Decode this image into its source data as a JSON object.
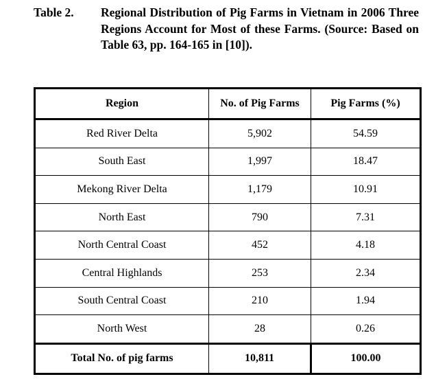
{
  "caption": {
    "label": "Table 2.",
    "text": "Regional Distribution of Pig Farms in Vietnam in 2006 Three Regions Account for Most of these Farms. (Source: Based on Table 63, pp. 164-165 in [10])."
  },
  "table": {
    "headers": [
      "Region",
      "No. of Pig Farms",
      "Pig Farms (%)"
    ],
    "rows": [
      [
        "Red River Delta",
        "5,902",
        "54.59"
      ],
      [
        "South East",
        "1,997",
        "18.47"
      ],
      [
        "Mekong River Delta",
        "1,179",
        "10.91"
      ],
      [
        "North East",
        "790",
        "7.31"
      ],
      [
        "North Central Coast",
        "452",
        "4.18"
      ],
      [
        "Central Highlands",
        "253",
        "2.34"
      ],
      [
        "South Central Coast",
        "210",
        "1.94"
      ],
      [
        "North West",
        "28",
        "0.26"
      ]
    ],
    "total": [
      "Total No. of pig farms",
      "10,811",
      "100.00"
    ]
  }
}
